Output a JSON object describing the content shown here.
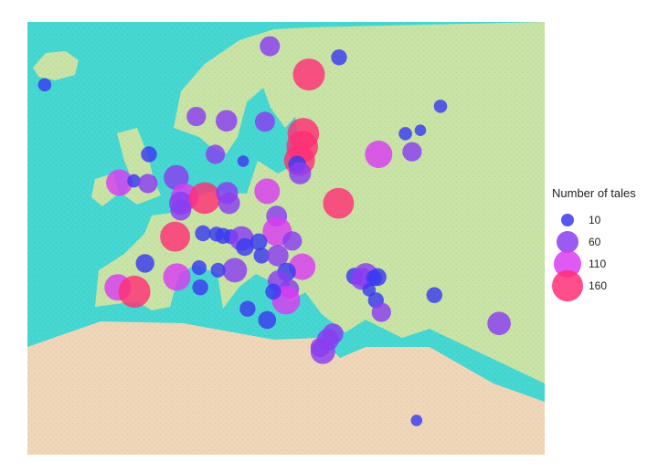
{
  "legend": {
    "title": "Number of tales",
    "items": [
      {
        "label": "10",
        "value": 10,
        "color": "#3b3bef"
      },
      {
        "label": "60",
        "value": 60,
        "color": "#8a3df0"
      },
      {
        "label": "110",
        "value": 110,
        "color": "#d93cf2"
      },
      {
        "label": "160",
        "value": 160,
        "color": "#ff2f75"
      }
    ]
  },
  "colors": {
    "sea": "#46d7d2",
    "land": "#c9e3a6",
    "desert": "#f0d6b8",
    "mountains": "#b9c69a",
    "ice": "#eef3f1"
  },
  "points": [
    {
      "lon": -21.9,
      "lat": 64.1,
      "tales": 10
    },
    {
      "lon": 18.5,
      "lat": 68.6,
      "tales": 45
    },
    {
      "lon": 25.5,
      "lat": 65.3,
      "tales": 165
    },
    {
      "lon": 30.9,
      "lat": 67.3,
      "tales": 20
    },
    {
      "lon": 5.3,
      "lat": 60.4,
      "tales": 40
    },
    {
      "lon": 10.7,
      "lat": 59.9,
      "tales": 55
    },
    {
      "lon": 17.6,
      "lat": 59.8,
      "tales": 45
    },
    {
      "lon": 24.5,
      "lat": 58.4,
      "tales": 160
    },
    {
      "lon": 24.3,
      "lat": 56.9,
      "tales": 160
    },
    {
      "lon": 23.8,
      "lat": 55.3,
      "tales": 150
    },
    {
      "lon": 23.4,
      "lat": 54.8,
      "tales": 30
    },
    {
      "lon": 23.9,
      "lat": 53.8,
      "tales": 60
    },
    {
      "lon": 38.0,
      "lat": 56.0,
      "tales": 110
    },
    {
      "lon": 42.8,
      "lat": 58.4,
      "tales": 10
    },
    {
      "lon": 44.0,
      "lat": 56.3,
      "tales": 40
    },
    {
      "lon": 49.1,
      "lat": 61.6,
      "tales": 10
    },
    {
      "lon": 45.5,
      "lat": 58.8,
      "tales": 5
    },
    {
      "lon": -3.2,
      "lat": 56.0,
      "tales": 20
    },
    {
      "lon": -8.5,
      "lat": 52.7,
      "tales": 100
    },
    {
      "lon": -5.9,
      "lat": 52.9,
      "tales": 10
    },
    {
      "lon": -3.4,
      "lat": 52.6,
      "tales": 40
    },
    {
      "lon": 1.7,
      "lat": 53.3,
      "tales": 85
    },
    {
      "lon": 3.2,
      "lat": 51.0,
      "tales": 110
    },
    {
      "lon": 2.5,
      "lat": 50.3,
      "tales": 70
    },
    {
      "lon": 2.5,
      "lat": 49.5,
      "tales": 50
    },
    {
      "lon": 6.8,
      "lat": 50.9,
      "tales": 160
    },
    {
      "lon": 10.8,
      "lat": 51.5,
      "tales": 60
    },
    {
      "lon": 11.2,
      "lat": 50.3,
      "tales": 55
    },
    {
      "lon": 8.7,
      "lat": 56.0,
      "tales": 40
    },
    {
      "lon": 13.7,
      "lat": 55.2,
      "tales": 5
    },
    {
      "lon": 18.0,
      "lat": 51.7,
      "tales": 90
    },
    {
      "lon": 19.7,
      "lat": 48.8,
      "tales": 50
    },
    {
      "lon": 19.8,
      "lat": 47.0,
      "tales": 130
    },
    {
      "lon": 22.5,
      "lat": 45.9,
      "tales": 40
    },
    {
      "lon": 30.8,
      "lat": 50.3,
      "tales": 150
    },
    {
      "lon": 1.5,
      "lat": 46.4,
      "tales": 140
    },
    {
      "lon": 6.5,
      "lat": 46.8,
      "tales": 20
    },
    {
      "lon": 8.9,
      "lat": 46.7,
      "tales": 15
    },
    {
      "lon": 10.1,
      "lat": 46.5,
      "tales": 20
    },
    {
      "lon": 11.5,
      "lat": 46.4,
      "tales": 15
    },
    {
      "lon": 13.4,
      "lat": 46.2,
      "tales": 80
    },
    {
      "lon": 16.5,
      "lat": 45.8,
      "tales": 25
    },
    {
      "lon": 14.0,
      "lat": 45.2,
      "tales": 30
    },
    {
      "lon": 17.0,
      "lat": 44.2,
      "tales": 20
    },
    {
      "lon": 19.9,
      "lat": 44.2,
      "tales": 55
    },
    {
      "lon": 24.3,
      "lat": 42.9,
      "tales": 100
    },
    {
      "lon": 21.5,
      "lat": 42.3,
      "tales": 35
    },
    {
      "lon": 20.1,
      "lat": 41.2,
      "tales": 60
    },
    {
      "lon": 22.0,
      "lat": 40.3,
      "tales": 40
    },
    {
      "lon": 21.4,
      "lat": 39.0,
      "tales": 120
    },
    {
      "lon": 19.1,
      "lat": 40.0,
      "tales": 20
    },
    {
      "lon": -3.9,
      "lat": 43.3,
      "tales": 35
    },
    {
      "lon": -8.8,
      "lat": 40.5,
      "tales": 100
    },
    {
      "lon": -5.8,
      "lat": 40.0,
      "tales": 165
    },
    {
      "lon": 1.8,
      "lat": 41.7,
      "tales": 110
    },
    {
      "lon": 5.8,
      "lat": 42.8,
      "tales": 15
    },
    {
      "lon": 6.0,
      "lat": 40.5,
      "tales": 20
    },
    {
      "lon": 12.2,
      "lat": 42.5,
      "tales": 80
    },
    {
      "lon": 9.2,
      "lat": 42.5,
      "tales": 15
    },
    {
      "lon": 14.5,
      "lat": 38.0,
      "tales": 20
    },
    {
      "lon": 18.0,
      "lat": 36.7,
      "tales": 30
    },
    {
      "lon": 33.7,
      "lat": 41.8,
      "tales": 25
    },
    {
      "lon": 35.7,
      "lat": 41.9,
      "tales": 80
    },
    {
      "lon": 35.0,
      "lat": 41.5,
      "tales": 60
    },
    {
      "lon": 37.2,
      "lat": 41.6,
      "tales": 20
    },
    {
      "lon": 37.8,
      "lat": 41.7,
      "tales": 30
    },
    {
      "lon": 36.3,
      "lat": 40.2,
      "tales": 10
    },
    {
      "lon": 37.5,
      "lat": 39.0,
      "tales": 20
    },
    {
      "lon": 38.5,
      "lat": 37.6,
      "tales": 40
    },
    {
      "lon": 48.0,
      "lat": 39.6,
      "tales": 20
    },
    {
      "lon": 59.6,
      "lat": 36.3,
      "tales": 70
    },
    {
      "lon": 29.8,
      "lat": 35.1,
      "tales": 50
    },
    {
      "lon": 28.9,
      "lat": 34.4,
      "tales": 60
    },
    {
      "lon": 28.0,
      "lat": 33.0,
      "tales": 80
    },
    {
      "lon": 27.5,
      "lat": 33.5,
      "tales": 40
    },
    {
      "lon": 44.8,
      "lat": 25.0,
      "tales": 5
    }
  ]
}
